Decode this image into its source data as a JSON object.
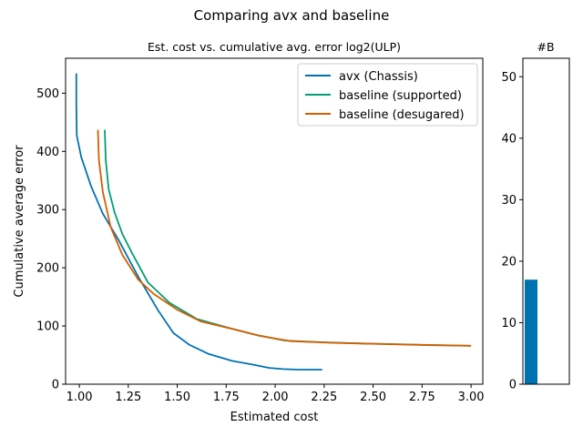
{
  "figure": {
    "suptitle": "Comparing avx and baseline"
  },
  "chart_data": [
    {
      "type": "line",
      "title": "Est. cost vs. cumulative avg. error log2(ULP)",
      "xlabel": "Estimated cost",
      "ylabel": "Cumulative average error",
      "xlim": [
        0.93,
        3.06
      ],
      "ylim": [
        0,
        560
      ],
      "xticks": [
        1.0,
        1.25,
        1.5,
        1.75,
        2.0,
        2.25,
        2.5,
        2.75,
        3.0
      ],
      "xtick_labels": [
        "1.00",
        "1.25",
        "1.50",
        "1.75",
        "2.00",
        "2.25",
        "2.50",
        "2.75",
        "3.00"
      ],
      "yticks": [
        0,
        100,
        200,
        300,
        400,
        500
      ],
      "ytick_labels": [
        "0",
        "100",
        "200",
        "300",
        "400",
        "500"
      ],
      "grid": false,
      "legend": "top-right",
      "series": [
        {
          "name": "avx (Chassis)",
          "color": "#0072b2",
          "x": [
            0.985,
            0.985,
            0.987,
            1.01,
            1.06,
            1.12,
            1.2,
            1.3,
            1.4,
            1.48,
            1.56,
            1.66,
            1.78,
            1.88,
            1.97,
            2.04,
            2.12,
            2.24
          ],
          "y": [
            534,
            480,
            427,
            390,
            340,
            293,
            248,
            185,
            128,
            88,
            68,
            52,
            40,
            34,
            28,
            26,
            25,
            25
          ]
        },
        {
          "name": "baseline (supported)",
          "color": "#009e73",
          "x": [
            1.13,
            1.135,
            1.15,
            1.18,
            1.22,
            1.27,
            1.35,
            1.46,
            1.6,
            1.75,
            1.9,
            2.05,
            2.25,
            2.45,
            2.7,
            3.0
          ],
          "y": [
            437,
            385,
            335,
            295,
            258,
            225,
            175,
            140,
            112,
            98,
            85,
            75,
            72,
            70,
            68,
            66
          ]
        },
        {
          "name": "baseline (desugared)",
          "color": "#d55e00",
          "x": [
            1.095,
            1.1,
            1.12,
            1.16,
            1.22,
            1.3,
            1.38,
            1.5,
            1.62,
            1.78,
            1.92,
            2.08,
            2.3,
            2.55,
            2.8,
            3.0
          ],
          "y": [
            437,
            385,
            330,
            270,
            222,
            180,
            155,
            128,
            108,
            95,
            83,
            74,
            71,
            69,
            67,
            66
          ]
        }
      ]
    },
    {
      "type": "bar",
      "title": "#B",
      "categories": [
        ""
      ],
      "values": [
        17
      ],
      "color": "#0072b2",
      "ylim": [
        0,
        53
      ],
      "yticks": [
        0,
        10,
        20,
        30,
        40,
        50
      ],
      "ytick_labels": [
        "0",
        "10",
        "20",
        "30",
        "40",
        "50"
      ]
    }
  ]
}
